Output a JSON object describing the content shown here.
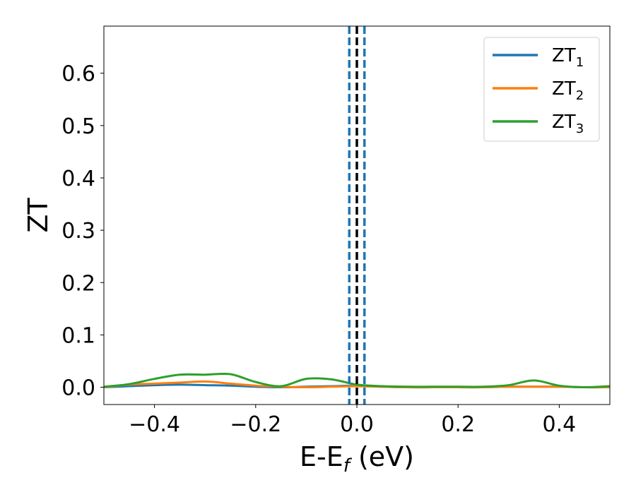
{
  "chart_data": {
    "type": "line",
    "xlabel": {
      "main": "E-E",
      "sub": "f",
      "unit": " (eV)"
    },
    "ylabel": "ZT",
    "xlim": [
      -0.5,
      0.5
    ],
    "ylim": [
      -0.033,
      0.69
    ],
    "xticks": [
      -0.4,
      -0.2,
      0.0,
      0.2,
      0.4
    ],
    "xtick_labels": [
      "−0.4",
      "−0.2",
      "0.0",
      "0.2",
      "0.4"
    ],
    "yticks": [
      0.0,
      0.1,
      0.2,
      0.3,
      0.4,
      0.5,
      0.6
    ],
    "ytick_labels": [
      "0.0",
      "0.1",
      "0.2",
      "0.3",
      "0.4",
      "0.5",
      "0.6"
    ],
    "grid": false,
    "legend_position": "top-right",
    "vlines": [
      {
        "x": -0.015,
        "color": "#1f77b4",
        "style": "dashed"
      },
      {
        "x": 0.0,
        "color": "#000000",
        "style": "dashed"
      },
      {
        "x": 0.015,
        "color": "#1f77b4",
        "style": "dashed"
      }
    ],
    "x": [
      -0.5,
      -0.45,
      -0.4,
      -0.35,
      -0.3,
      -0.25,
      -0.2,
      -0.15,
      -0.1,
      -0.05,
      0.0,
      0.05,
      0.1,
      0.15,
      0.2,
      0.25,
      0.3,
      0.35,
      0.4,
      0.45,
      0.5
    ],
    "series": [
      {
        "name": "ZT",
        "sub": "1",
        "color": "#1f77b4",
        "values": [
          0.0,
          0.002,
          0.004,
          0.005,
          0.004,
          0.003,
          0.001,
          0.0,
          0.001,
          0.002,
          0.003,
          0.001,
          0.0,
          0.0,
          0.0,
          0.0,
          0.001,
          0.001,
          0.001,
          0.0,
          0.0
        ]
      },
      {
        "name": "ZT",
        "sub": "2",
        "color": "#ff7f0e",
        "values": [
          0.0,
          0.005,
          0.007,
          0.009,
          0.011,
          0.007,
          0.003,
          0.001,
          0.0,
          0.001,
          0.002,
          0.001,
          0.0,
          0.0,
          0.0,
          0.0,
          0.001,
          0.001,
          0.001,
          0.0,
          0.0
        ]
      },
      {
        "name": "ZT",
        "sub": "3",
        "color": "#2ca02c",
        "values": [
          0.001,
          0.006,
          0.016,
          0.024,
          0.024,
          0.025,
          0.01,
          0.002,
          0.016,
          0.015,
          0.005,
          0.002,
          0.001,
          0.001,
          0.001,
          0.001,
          0.004,
          0.013,
          0.003,
          0.0,
          0.002
        ]
      }
    ]
  }
}
